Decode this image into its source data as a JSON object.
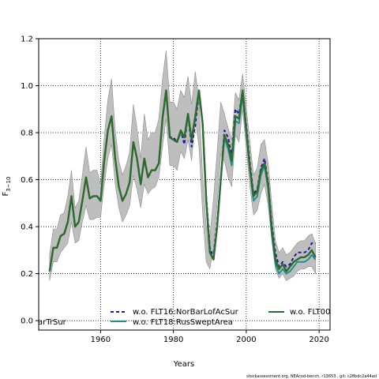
{
  "chart_data": {
    "type": "line",
    "xlabel": "Years",
    "ylabel": "F",
    "ylabel_sub": "3−10",
    "xlim": [
      1943,
      2023
    ],
    "ylim": [
      -0.04,
      1.2
    ],
    "xticks": [
      "1960",
      "1980",
      "2000",
      "2020"
    ],
    "yticks": [
      "0.0",
      "0.2",
      "0.4",
      "0.6",
      "0.8",
      "1.0",
      "1.2"
    ],
    "grid": true,
    "band_color": "#bebebe",
    "x": [
      1946,
      1947,
      1948,
      1949,
      1950,
      1951,
      1952,
      1953,
      1954,
      1955,
      1956,
      1957,
      1958,
      1959,
      1960,
      1961,
      1962,
      1963,
      1964,
      1965,
      1966,
      1967,
      1968,
      1969,
      1970,
      1971,
      1972,
      1973,
      1974,
      1975,
      1976,
      1977,
      1978,
      1979,
      1980,
      1981,
      1982,
      1983,
      1984,
      1985,
      1986,
      1987,
      1988,
      1989,
      1990,
      1991,
      1992,
      1993,
      1994,
      1995,
      1996,
      1997,
      1998,
      1999,
      2000,
      2001,
      2002,
      2003,
      2004,
      2005,
      2006,
      2007,
      2008,
      2009,
      2010,
      2011,
      2012,
      2013,
      2014,
      2015,
      2016,
      2017,
      2018,
      2019
    ],
    "band_upper": [
      0.28,
      0.39,
      0.39,
      0.45,
      0.46,
      0.53,
      0.64,
      0.48,
      0.51,
      0.62,
      0.74,
      0.63,
      0.64,
      0.64,
      0.58,
      0.78,
      0.94,
      1.03,
      0.81,
      0.68,
      0.62,
      0.66,
      0.72,
      0.92,
      0.82,
      0.69,
      0.88,
      0.77,
      0.8,
      0.8,
      0.86,
      1.03,
      1.15,
      0.93,
      0.93,
      0.9,
      0.98,
      0.95,
      1.04,
      0.92,
      1.06,
      0.94,
      0.62,
      0.4,
      0.36,
      0.52,
      0.72,
      0.93,
      0.88,
      0.82,
      0.77,
      0.97,
      0.94,
      1.05,
      0.91,
      0.76,
      0.62,
      0.65,
      0.75,
      0.77,
      0.67,
      0.5,
      0.34,
      0.29,
      0.31,
      0.28,
      0.29,
      0.31,
      0.33,
      0.34,
      0.34,
      0.36,
      0.37,
      0.33
    ],
    "band_lower": [
      0.17,
      0.25,
      0.25,
      0.29,
      0.31,
      0.33,
      0.42,
      0.33,
      0.34,
      0.42,
      0.49,
      0.43,
      0.43,
      0.44,
      0.44,
      0.58,
      0.69,
      0.75,
      0.58,
      0.48,
      0.42,
      0.45,
      0.49,
      0.62,
      0.56,
      0.48,
      0.58,
      0.54,
      0.56,
      0.57,
      0.61,
      0.74,
      0.86,
      0.66,
      0.66,
      0.64,
      0.72,
      0.69,
      0.77,
      0.68,
      0.86,
      0.74,
      0.46,
      0.25,
      0.22,
      0.31,
      0.5,
      0.71,
      0.68,
      0.61,
      0.57,
      0.79,
      0.76,
      0.9,
      0.73,
      0.57,
      0.45,
      0.47,
      0.54,
      0.58,
      0.49,
      0.34,
      0.22,
      0.18,
      0.2,
      0.17,
      0.18,
      0.19,
      0.21,
      0.22,
      0.22,
      0.23,
      0.23,
      0.2
    ],
    "series": [
      {
        "name": "w.o. FLT16:NorBarLofAcSur",
        "color": "#1d1a9e",
        "style": "dashed",
        "values": [
          0.21,
          0.31,
          0.31,
          0.36,
          0.37,
          0.42,
          0.53,
          0.4,
          0.42,
          0.51,
          0.61,
          0.52,
          0.53,
          0.53,
          0.51,
          0.68,
          0.81,
          0.87,
          0.69,
          0.57,
          0.51,
          0.54,
          0.59,
          0.76,
          0.69,
          0.58,
          0.69,
          0.61,
          0.64,
          0.64,
          0.67,
          0.86,
          0.98,
          0.78,
          0.78,
          0.76,
          0.81,
          0.75,
          0.88,
          0.74,
          0.83,
          0.97,
          0.84,
          0.53,
          0.31,
          0.27,
          0.42,
          0.6,
          0.81,
          0.78,
          0.7,
          0.9,
          0.88,
          0.98,
          0.83,
          0.67,
          0.54,
          0.56,
          0.65,
          0.69,
          0.59,
          0.41,
          0.29,
          0.23,
          0.25,
          0.23,
          0.24,
          0.27,
          0.29,
          0.29,
          0.29,
          0.3,
          0.33,
          0.33
        ]
      },
      {
        "name": "w.o. FLT18:RusSweptArea",
        "color": "#21908c",
        "style": "solid",
        "values": [
          0.21,
          0.31,
          0.31,
          0.36,
          0.37,
          0.42,
          0.53,
          0.4,
          0.42,
          0.51,
          0.61,
          0.52,
          0.53,
          0.53,
          0.51,
          0.68,
          0.81,
          0.87,
          0.69,
          0.57,
          0.51,
          0.54,
          0.59,
          0.76,
          0.69,
          0.58,
          0.69,
          0.61,
          0.64,
          0.64,
          0.67,
          0.86,
          0.98,
          0.78,
          0.77,
          0.76,
          0.8,
          0.78,
          0.87,
          0.77,
          0.86,
          0.97,
          0.84,
          0.51,
          0.29,
          0.26,
          0.4,
          0.6,
          0.78,
          0.73,
          0.66,
          0.85,
          0.84,
          0.96,
          0.8,
          0.64,
          0.51,
          0.53,
          0.62,
          0.66,
          0.56,
          0.37,
          0.24,
          0.2,
          0.22,
          0.2,
          0.21,
          0.23,
          0.25,
          0.25,
          0.25,
          0.26,
          0.28,
          0.26
        ]
      },
      {
        "name": "w.o. FLT00",
        "color": "#2d6a2d",
        "style": "solid",
        "values": [
          0.21,
          0.31,
          0.31,
          0.36,
          0.37,
          0.42,
          0.53,
          0.4,
          0.42,
          0.51,
          0.61,
          0.52,
          0.53,
          0.53,
          0.51,
          0.68,
          0.81,
          0.87,
          0.69,
          0.57,
          0.51,
          0.54,
          0.59,
          0.76,
          0.69,
          0.58,
          0.69,
          0.61,
          0.64,
          0.64,
          0.67,
          0.86,
          0.98,
          0.78,
          0.77,
          0.76,
          0.81,
          0.78,
          0.88,
          0.77,
          0.87,
          0.98,
          0.84,
          0.51,
          0.29,
          0.26,
          0.4,
          0.6,
          0.79,
          0.75,
          0.68,
          0.87,
          0.86,
          0.98,
          0.81,
          0.65,
          0.53,
          0.55,
          0.64,
          0.67,
          0.58,
          0.39,
          0.26,
          0.22,
          0.24,
          0.21,
          0.23,
          0.25,
          0.26,
          0.27,
          0.27,
          0.28,
          0.3,
          0.27
        ]
      }
    ],
    "clipped_legend_label": "arTrSur",
    "footer": "stockassessment.org, NEAcod-bench, r13653 , git: c28bdc2a44ad"
  }
}
